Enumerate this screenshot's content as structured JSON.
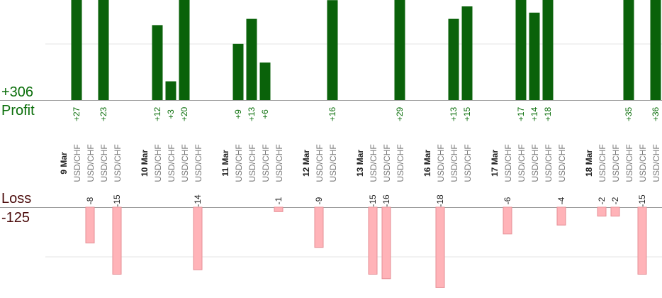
{
  "summary": {
    "profit_total": "+306",
    "profit_label": "Profit",
    "loss_label": "Loss",
    "loss_total": "-125"
  },
  "colors": {
    "profit_bar": "#0a620a",
    "profit_text": "#0a6e0a",
    "loss_bar": "#ffb3b8",
    "loss_border": "#e58f96",
    "loss_text": "#4a0a0a",
    "date_text": "#222222",
    "pair_text": "#777777",
    "grid": "#e6e6e6"
  },
  "chart_data": {
    "type": "bar",
    "columns": [
      {
        "label": "9 Mar",
        "kind": "date"
      },
      {
        "label": "USD/CHF",
        "kind": "pair",
        "value": 27
      },
      {
        "label": "USD/CHF",
        "kind": "pair",
        "value": -8
      },
      {
        "label": "USD/CHF",
        "kind": "pair",
        "value": 23
      },
      {
        "label": "USD/CHF",
        "kind": "pair",
        "value": -15
      },
      {
        "label": "",
        "kind": "gap"
      },
      {
        "label": "10 Mar",
        "kind": "date"
      },
      {
        "label": "USD/CHF",
        "kind": "pair",
        "value": 12
      },
      {
        "label": "USD/CHF",
        "kind": "pair",
        "value": 3
      },
      {
        "label": "USD/CHF",
        "kind": "pair",
        "value": 20
      },
      {
        "label": "USD/CHF",
        "kind": "pair",
        "value": -14
      },
      {
        "label": "",
        "kind": "gap"
      },
      {
        "label": "11 Mar",
        "kind": "date"
      },
      {
        "label": "USD/CHF",
        "kind": "pair",
        "value": 9
      },
      {
        "label": "USD/CHF",
        "kind": "pair",
        "value": 13
      },
      {
        "label": "USD/CHF",
        "kind": "pair",
        "value": 6
      },
      {
        "label": "USD/CHF",
        "kind": "pair",
        "value": -1
      },
      {
        "label": "",
        "kind": "gap"
      },
      {
        "label": "12 Mar",
        "kind": "date"
      },
      {
        "label": "USD/CHF",
        "kind": "pair",
        "value": -9
      },
      {
        "label": "USD/CHF",
        "kind": "pair",
        "value": 16
      },
      {
        "label": "",
        "kind": "gap"
      },
      {
        "label": "13 Mar",
        "kind": "date"
      },
      {
        "label": "USD/CHF",
        "kind": "pair",
        "value": -15
      },
      {
        "label": "USD/CHF",
        "kind": "pair",
        "value": -16
      },
      {
        "label": "USD/CHF",
        "kind": "pair",
        "value": 29
      },
      {
        "label": "",
        "kind": "gap"
      },
      {
        "label": "16 Mar",
        "kind": "date"
      },
      {
        "label": "USD/CHF",
        "kind": "pair",
        "value": -18
      },
      {
        "label": "USD/CHF",
        "kind": "pair",
        "value": 13
      },
      {
        "label": "USD/CHF",
        "kind": "pair",
        "value": 15
      },
      {
        "label": "",
        "kind": "gap"
      },
      {
        "label": "17 Mar",
        "kind": "date"
      },
      {
        "label": "USD/CHF",
        "kind": "pair",
        "value": -6
      },
      {
        "label": "USD/CHF",
        "kind": "pair",
        "value": 17
      },
      {
        "label": "USD/CHF",
        "kind": "pair",
        "value": 14
      },
      {
        "label": "USD/CHF",
        "kind": "pair",
        "value": 18
      },
      {
        "label": "USD/CHF",
        "kind": "pair",
        "value": -4
      },
      {
        "label": "",
        "kind": "gap"
      },
      {
        "label": "18 Mar",
        "kind": "date"
      },
      {
        "label": "USD/CHF",
        "kind": "pair",
        "value": -2
      },
      {
        "label": "USD/CHF",
        "kind": "pair",
        "value": -2
      },
      {
        "label": "USD/CHF",
        "kind": "pair",
        "value": 35
      },
      {
        "label": "USD/CHF",
        "kind": "pair",
        "value": -15
      },
      {
        "label": "USD/CHF",
        "kind": "pair",
        "value": 36
      }
    ]
  }
}
